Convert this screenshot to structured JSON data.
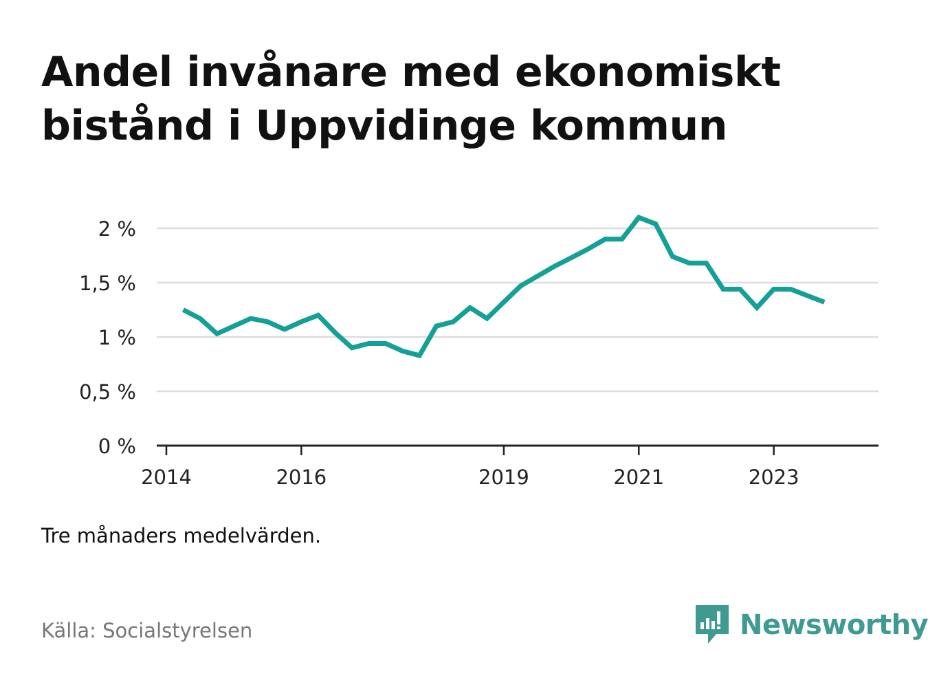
{
  "title": "Andel invånare med ekonomiskt bistånd i Uppvidinge kommun",
  "note": "Tre månaders medelvärden.",
  "source": "Källa: Socialstyrelsen",
  "brand": {
    "name": "Newsworthy",
    "icon": "newsworthy-logo-icon",
    "color": "#3f9a91"
  },
  "colors": {
    "line": "#14a097",
    "grid": "#dddddd",
    "axis": "#222222"
  },
  "chart_data": {
    "type": "line",
    "title": "Andel invånare med ekonomiskt bistånd i Uppvidinge kommun",
    "xlabel": "",
    "ylabel": "",
    "ylim": [
      0,
      2
    ],
    "yticks": [
      0,
      0.5,
      1,
      1.5,
      2
    ],
    "ytick_labels": [
      "0 %",
      "0,5 %",
      "1 %",
      "1,5 %",
      "2 %"
    ],
    "xlim": [
      "2014-01",
      "2024-02"
    ],
    "xticks": [
      "2014-01",
      "2016-01",
      "2019-01",
      "2021-01",
      "2023-01"
    ],
    "xtick_labels": [
      "2014",
      "2016",
      "2019",
      "2021",
      "2023"
    ],
    "grid": true,
    "series": [
      {
        "x": [
          "2014-04",
          "2014-07",
          "2014-10",
          "2015-01",
          "2015-04",
          "2015-07",
          "2015-10",
          "2016-01",
          "2016-04",
          "2016-07",
          "2016-10",
          "2017-01",
          "2017-04",
          "2017-07",
          "2017-10",
          "2018-01",
          "2018-04",
          "2018-07",
          "2018-10",
          "2019-01",
          "2019-04",
          "2019-07",
          "2019-10",
          "2020-01",
          "2020-04",
          "2020-07",
          "2020-10",
          "2021-01",
          "2021-04",
          "2021-07",
          "2021-10",
          "2022-01",
          "2022-04",
          "2022-07",
          "2022-10",
          "2023-01",
          "2023-04",
          "2023-07",
          "2023-10"
        ],
        "y": [
          1.25,
          1.17,
          1.03,
          1.1,
          1.17,
          1.14,
          1.07,
          1.14,
          1.2,
          1.04,
          0.9,
          0.94,
          0.94,
          0.87,
          0.83,
          1.1,
          1.14,
          1.27,
          1.17,
          1.32,
          1.47,
          1.56,
          1.65,
          1.73,
          1.81,
          1.9,
          1.9,
          2.1,
          2.04,
          1.74,
          1.68,
          1.68,
          1.44,
          1.44,
          1.27,
          1.44,
          1.44,
          1.38,
          1.32
        ]
      }
    ]
  }
}
